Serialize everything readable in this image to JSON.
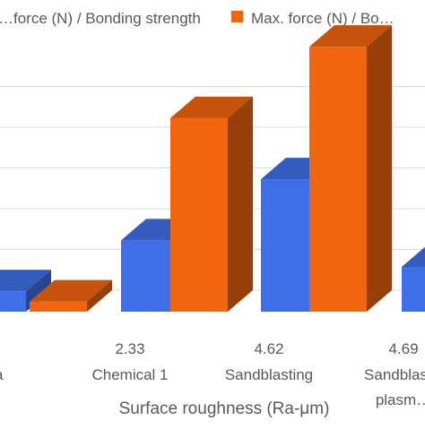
{
  "chart_data": {
    "type": "bar",
    "style": "3d-clustered-column",
    "categories": [
      {
        "value": "",
        "label": "a"
      },
      {
        "value": "2.33",
        "label": "Chemical 1"
      },
      {
        "value": "4.62",
        "label": "Sandblasting"
      },
      {
        "value": "4.69",
        "label": "Sandblas…",
        "label2": "plasm…"
      }
    ],
    "series": [
      {
        "name": "…force (N) / Bonding strength",
        "color": "#3F6FE8",
        "values": [
          1,
          3.5,
          6.5,
          2.2
        ]
      },
      {
        "name": "Max. force (N) / Bo…",
        "color": "#F2650F",
        "values": [
          0.5,
          9.5,
          13,
          null
        ]
      }
    ],
    "xlabel": "Surface roughness (Ra-μm)",
    "ylabel": "",
    "ylim": [
      0,
      18
    ],
    "gridlines": true,
    "legend_position": "top"
  }
}
